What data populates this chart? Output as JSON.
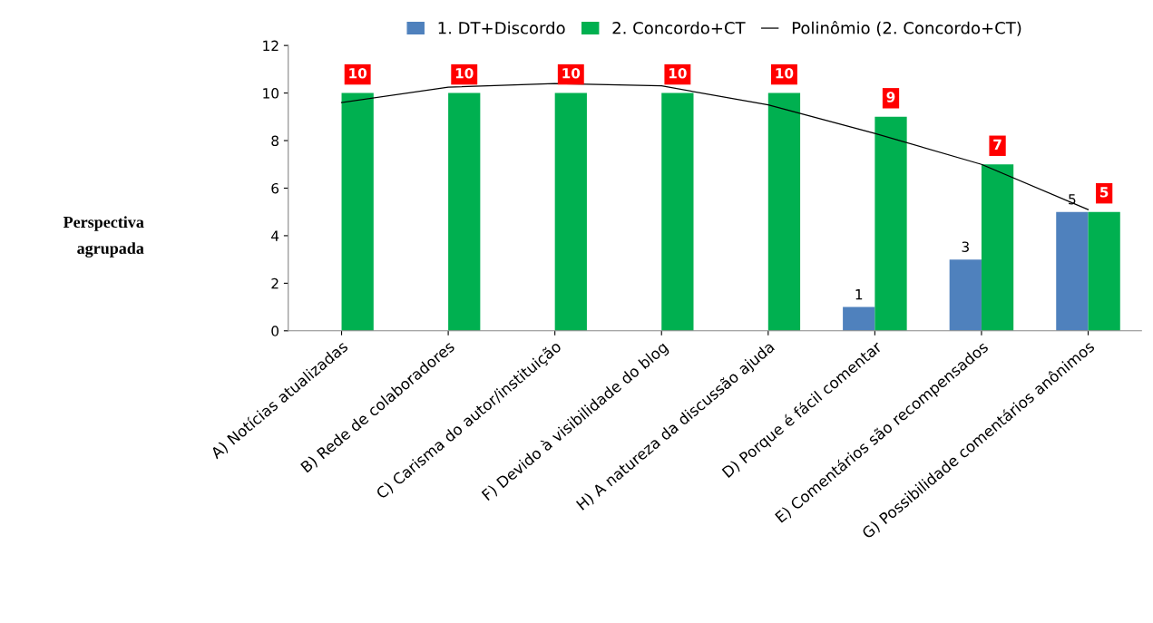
{
  "chart_data": {
    "type": "bar",
    "ylabel": "Perspectiva agrupada",
    "categories": [
      "A) Notícias atualizadas",
      "B) Rede de colaboradores",
      "C) Carisma do autor/instituição",
      "F) Devido à visibilidade do blog",
      "H) A natureza da discussão ajuda",
      "D) Porque é fácil comentar",
      "E) Comentários são recompensados",
      "G) Possibilidade comentários anônimos"
    ],
    "series": [
      {
        "name": "1. DT+Discordo",
        "color": "#4f81bd",
        "values": [
          null,
          null,
          null,
          null,
          null,
          1,
          3,
          5
        ],
        "value_labels": [
          null,
          null,
          null,
          null,
          null,
          "1",
          "3",
          "5"
        ]
      },
      {
        "name": "2. Concordo+CT",
        "color": "#00b050",
        "values": [
          10,
          10,
          10,
          10,
          10,
          9,
          7,
          5
        ],
        "value_labels": [
          "10",
          "10",
          "10",
          "10",
          "10",
          "9",
          "7",
          "5"
        ]
      },
      {
        "name": "Polinômio (2. Concordo+CT)",
        "color": "#000000",
        "type": "line",
        "values": [
          9.6,
          10.25,
          10.4,
          10.3,
          9.5,
          8.3,
          7.0,
          5.1
        ]
      }
    ],
    "ylim": [
      0,
      12
    ],
    "yticks": [
      0,
      2,
      4,
      6,
      8,
      10,
      12
    ],
    "legend": "top",
    "grid": false
  }
}
